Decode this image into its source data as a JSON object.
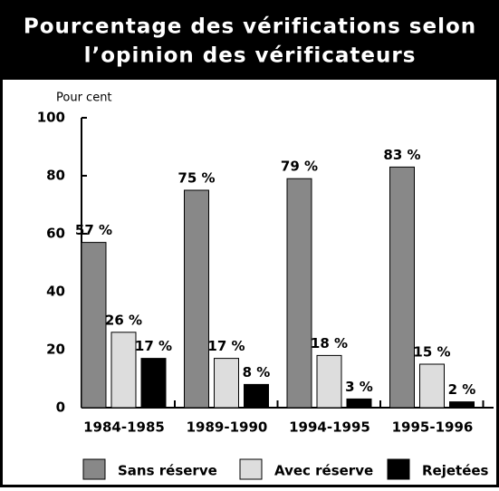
{
  "chart_data": {
    "type": "bar",
    "title": [
      "Pourcentage des vérifications selon",
      "l’opinion des vérificateurs"
    ],
    "y_label": "Pour cent",
    "categories": [
      "1984-1985",
      "1989-1990",
      "1994-1995",
      "1995-1996"
    ],
    "series": [
      {
        "name": "Sans réserve",
        "color": "#888888",
        "values": [
          57,
          75,
          79,
          83
        ],
        "value_labels": [
          "57 %",
          "75 %",
          "79 %",
          "83 %"
        ]
      },
      {
        "name": "Avec réserve",
        "color": "#dddddd",
        "values": [
          26,
          17,
          18,
          15
        ],
        "value_labels": [
          "26 %",
          "17 %",
          "18 %",
          "15 %"
        ]
      },
      {
        "name": "Rejetées",
        "color": "#000000",
        "values": [
          17,
          8,
          3,
          2
        ],
        "value_labels": [
          "17 %",
          "8 %",
          "3 %",
          "2 %"
        ]
      }
    ],
    "ylim": [
      0,
      100
    ],
    "yticks": [
      0,
      20,
      40,
      60,
      80,
      100
    ],
    "legend": "bottom"
  }
}
